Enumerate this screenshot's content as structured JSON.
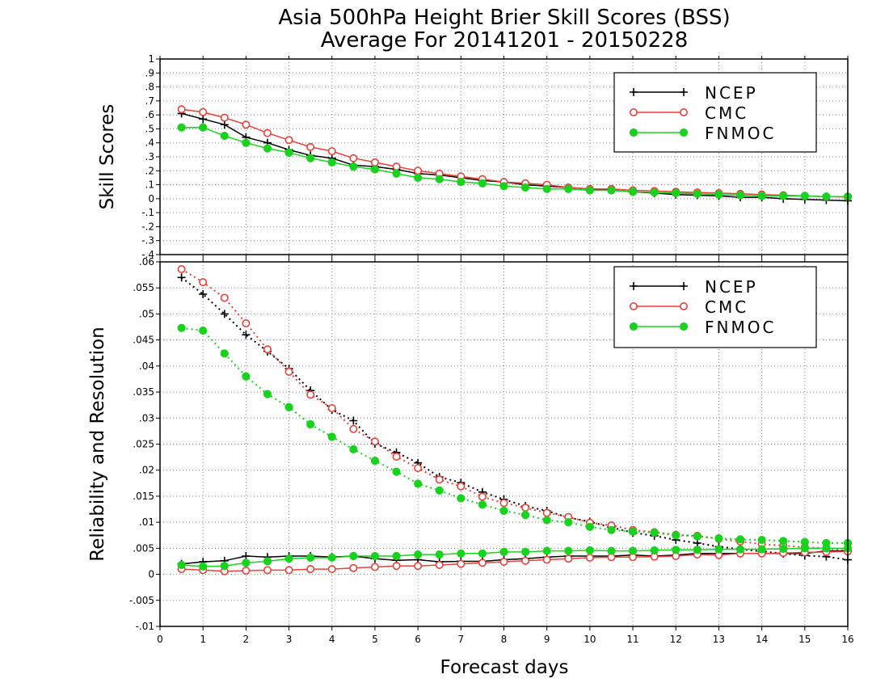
{
  "title_line1": "Asia 500hPa Height Brier Skill Scores (BSS)",
  "title_line2": "Average For 20141201 - 20150228",
  "xlabel": "Forecast days",
  "colors": {
    "NCEP": "#000000",
    "CMC": "#e8403a",
    "FNMOC": "#19d21e",
    "grid": "#888888"
  },
  "chart_data": [
    {
      "type": "line",
      "panel": "top",
      "ylabel": "Skill Scores",
      "xlim": [
        0,
        16
      ],
      "ylim": [
        -0.4,
        1
      ],
      "xticks": [
        0,
        1,
        2,
        3,
        4,
        5,
        6,
        7,
        8,
        9,
        10,
        11,
        12,
        13,
        14,
        15,
        16
      ],
      "yticks": [
        -0.4,
        -0.3,
        -0.2,
        -0.1,
        0,
        0.1,
        0.2,
        0.3,
        0.4,
        0.5,
        0.6,
        0.7,
        0.8,
        0.9,
        1
      ],
      "grid": true,
      "legend_position": "top-right",
      "x": [
        0.5,
        1,
        1.5,
        2,
        2.5,
        3,
        3.5,
        4,
        4.5,
        5,
        5.5,
        6,
        6.5,
        7,
        7.5,
        8,
        8.5,
        9,
        9.5,
        10,
        10.5,
        11,
        11.5,
        12,
        12.5,
        13,
        13.5,
        14,
        14.5,
        15,
        15.5,
        16
      ],
      "series": [
        {
          "name": "NCEP",
          "marker": "plus",
          "line": "solid",
          "values": [
            0.61,
            0.57,
            0.53,
            0.44,
            0.4,
            0.35,
            0.31,
            0.29,
            0.24,
            0.23,
            0.21,
            0.18,
            0.17,
            0.15,
            0.13,
            0.12,
            0.1,
            0.09,
            0.08,
            0.07,
            0.06,
            0.05,
            0.04,
            0.03,
            0.025,
            0.02,
            0.01,
            0.01,
            0.0,
            -0.005,
            -0.01,
            -0.015
          ]
        },
        {
          "name": "CMC",
          "marker": "open-circle",
          "line": "solid",
          "values": [
            0.64,
            0.62,
            0.58,
            0.53,
            0.47,
            0.42,
            0.37,
            0.34,
            0.29,
            0.26,
            0.23,
            0.2,
            0.18,
            0.16,
            0.14,
            0.12,
            0.11,
            0.1,
            0.08,
            0.07,
            0.07,
            0.06,
            0.055,
            0.05,
            0.045,
            0.04,
            0.035,
            0.03,
            0.025,
            0.02,
            0.015,
            0.012
          ]
        },
        {
          "name": "FNMOC",
          "marker": "filled-circle",
          "line": "solid",
          "values": [
            0.51,
            0.51,
            0.45,
            0.4,
            0.36,
            0.33,
            0.29,
            0.26,
            0.23,
            0.21,
            0.18,
            0.15,
            0.14,
            0.12,
            0.11,
            0.09,
            0.08,
            0.07,
            0.07,
            0.06,
            0.06,
            0.05,
            0.045,
            0.04,
            0.035,
            0.03,
            0.025,
            0.02,
            0.02,
            0.02,
            0.015,
            0.015
          ]
        }
      ]
    },
    {
      "type": "line",
      "panel": "bottom",
      "ylabel": "Reliability and Resolution",
      "xlim": [
        0,
        16
      ],
      "ylim": [
        -0.01,
        0.06
      ],
      "xticks": [
        0,
        1,
        2,
        3,
        4,
        5,
        6,
        7,
        8,
        9,
        10,
        11,
        12,
        13,
        14,
        15,
        16
      ],
      "yticks": [
        -0.01,
        -0.005,
        0,
        0.005,
        0.01,
        0.015,
        0.02,
        0.025,
        0.03,
        0.035,
        0.04,
        0.045,
        0.05,
        0.055,
        0.06
      ],
      "grid": true,
      "legend_position": "top-right",
      "x": [
        0.5,
        1,
        1.5,
        2,
        2.5,
        3,
        3.5,
        4,
        4.5,
        5,
        5.5,
        6,
        6.5,
        7,
        7.5,
        8,
        8.5,
        9,
        9.5,
        10,
        10.5,
        11,
        11.5,
        12,
        12.5,
        13,
        13.5,
        14,
        14.5,
        15,
        15.5,
        16
      ],
      "series": [
        {
          "name": "NCEP",
          "component": "resolution",
          "marker": "plus",
          "line": "dotted",
          "in_legend": true,
          "values": [
            0.057,
            0.0538,
            0.05,
            0.046,
            0.0428,
            0.0395,
            0.0353,
            0.0316,
            0.0295,
            0.0251,
            0.0234,
            0.0214,
            0.0187,
            0.0176,
            0.0158,
            0.0144,
            0.0131,
            0.0122,
            0.0109,
            0.0101,
            0.009,
            0.008,
            0.0074,
            0.0066,
            0.006,
            0.0053,
            0.0048,
            0.0044,
            0.004,
            0.0036,
            0.0034,
            0.0028
          ]
        },
        {
          "name": "CMC",
          "component": "resolution",
          "marker": "open-circle",
          "line": "dotted",
          "in_legend": true,
          "values": [
            0.0586,
            0.0561,
            0.0531,
            0.0482,
            0.0432,
            0.0389,
            0.0345,
            0.0319,
            0.0279,
            0.0255,
            0.0226,
            0.0204,
            0.0182,
            0.0169,
            0.0149,
            0.0137,
            0.0128,
            0.0118,
            0.011,
            0.0099,
            0.0094,
            0.0085,
            0.0081,
            0.0076,
            0.0074,
            0.0068,
            0.0063,
            0.0058,
            0.0055,
            0.0052,
            0.005,
            0.0045
          ]
        },
        {
          "name": "FNMOC",
          "component": "resolution",
          "marker": "filled-circle",
          "line": "dotted",
          "in_legend": true,
          "values": [
            0.0473,
            0.0468,
            0.0424,
            0.038,
            0.0346,
            0.0321,
            0.0288,
            0.0264,
            0.024,
            0.0218,
            0.0197,
            0.0174,
            0.0161,
            0.0146,
            0.0134,
            0.0122,
            0.0114,
            0.0104,
            0.01,
            0.0091,
            0.0085,
            0.0082,
            0.008,
            0.0075,
            0.0073,
            0.0069,
            0.0067,
            0.0066,
            0.0064,
            0.0062,
            0.006,
            0.006
          ]
        },
        {
          "name": "NCEP",
          "component": "reliability",
          "marker": "plus",
          "line": "solid",
          "in_legend": false,
          "values": [
            0.002,
            0.0024,
            0.0026,
            0.0035,
            0.0033,
            0.0035,
            0.0035,
            0.0033,
            0.0035,
            0.003,
            0.0027,
            0.0028,
            0.0024,
            0.0025,
            0.0025,
            0.0028,
            0.003,
            0.0033,
            0.0035,
            0.0035,
            0.0035,
            0.0037,
            0.0035,
            0.0037,
            0.004,
            0.004,
            0.004,
            0.004,
            0.004,
            0.004,
            0.0045,
            0.0045
          ]
        },
        {
          "name": "CMC",
          "component": "reliability",
          "marker": "open-circle",
          "line": "solid",
          "in_legend": false,
          "values": [
            0.001,
            0.0008,
            0.0006,
            0.0007,
            0.0008,
            0.0008,
            0.001,
            0.001,
            0.0012,
            0.0014,
            0.0016,
            0.0016,
            0.0018,
            0.002,
            0.0022,
            0.0024,
            0.0026,
            0.0028,
            0.003,
            0.0032,
            0.0033,
            0.0033,
            0.0034,
            0.0035,
            0.0038,
            0.0037,
            0.004,
            0.004,
            0.0041,
            0.0042,
            0.0043,
            0.0044
          ]
        },
        {
          "name": "FNMOC",
          "component": "reliability",
          "marker": "filled-circle",
          "line": "solid",
          "in_legend": false,
          "values": [
            0.0018,
            0.0015,
            0.0016,
            0.0022,
            0.0025,
            0.003,
            0.0032,
            0.0032,
            0.0035,
            0.0035,
            0.0035,
            0.0038,
            0.0038,
            0.004,
            0.004,
            0.0043,
            0.0043,
            0.0045,
            0.0045,
            0.0046,
            0.0045,
            0.0045,
            0.0046,
            0.0047,
            0.0047,
            0.0048,
            0.0048,
            0.0048,
            0.0049,
            0.005,
            0.005,
            0.005
          ]
        }
      ]
    }
  ]
}
